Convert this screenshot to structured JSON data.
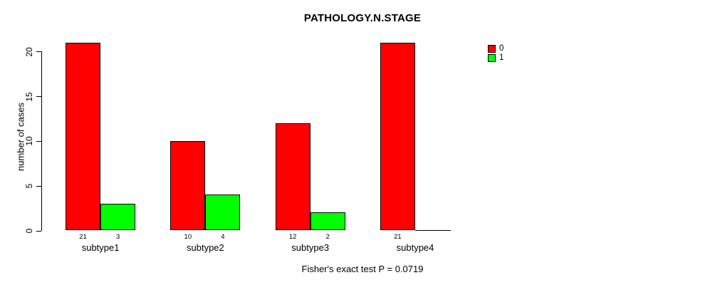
{
  "chart_data": {
    "type": "bar",
    "title": "PATHOLOGY.N.STAGE",
    "xlabel": "",
    "ylabel": "number of cases",
    "categories": [
      "subtype1",
      "subtype2",
      "subtype3",
      "subtype4"
    ],
    "series": [
      {
        "name": "0",
        "color": "#ff0000",
        "values": [
          21,
          10,
          12,
          21
        ]
      },
      {
        "name": "1",
        "color": "#00ff00",
        "values": [
          3,
          4,
          2,
          0
        ]
      }
    ],
    "bar_value_labels": [
      [
        "21",
        "3"
      ],
      [
        "10",
        "4"
      ],
      [
        "12",
        "2"
      ],
      [
        "21",
        null
      ]
    ],
    "ylim": [
      0,
      21
    ],
    "yticks": [
      0,
      5,
      10,
      15,
      20
    ],
    "grid": false,
    "legend": {
      "position": "top-right",
      "entries": [
        {
          "label": "0",
          "color": "#ff0000"
        },
        {
          "label": "1",
          "color": "#00ff00"
        }
      ]
    },
    "annotation": "Fisher's exact test P = 0.0719"
  }
}
